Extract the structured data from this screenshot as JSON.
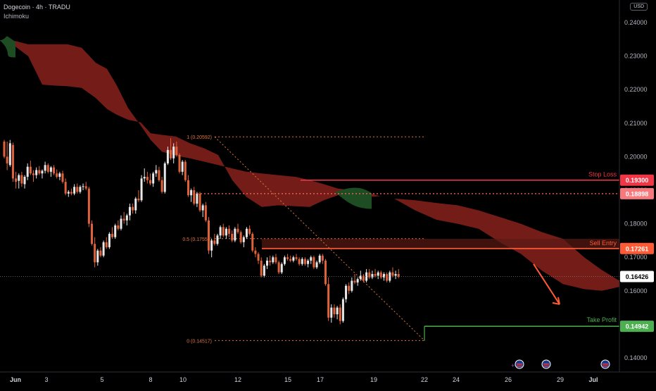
{
  "header": {
    "symbol": "Dogecoin · 4h · TRADU",
    "indicator": "Ichimoku",
    "currency": "USD"
  },
  "colors": {
    "up": "#e8e8e8",
    "down": "#e0623a",
    "bearish_cloud": "#7a1f19",
    "bullish_cloud": "#1e4d24",
    "stop_loss": "#f23645",
    "sell_entry": "#ff5a36",
    "take_profit": "#4caf50",
    "fib": "#e0763a",
    "arrow": "#ff5a36"
  },
  "chart_data": {
    "type": "candlestick",
    "y_axis": {
      "ticks": [
        "0.24000",
        "0.23000",
        "0.22000",
        "0.21000",
        "0.20000",
        "0.19000",
        "0.18000",
        "0.17000",
        "0.16000",
        "0.15000",
        "0.14000"
      ],
      "ylim": [
        0.1375,
        0.2435
      ]
    },
    "x_axis": {
      "labels": [
        "Jun",
        "3",
        "5",
        "8",
        "10",
        "12",
        "15",
        "17",
        "19",
        "22",
        "24",
        "26",
        "29",
        "Jul"
      ]
    },
    "candles": [
      [
        0.2045,
        0.205,
        0.1995,
        0.2
      ],
      [
        0.2,
        0.2045,
        0.196,
        0.198
      ],
      [
        0.1975,
        0.205,
        0.197,
        0.204
      ],
      [
        0.2035,
        0.2042,
        0.1925,
        0.1935
      ],
      [
        0.1935,
        0.1955,
        0.1905,
        0.1925
      ],
      [
        0.1928,
        0.195,
        0.1905,
        0.1945
      ],
      [
        0.1945,
        0.1955,
        0.191,
        0.192
      ],
      [
        0.1918,
        0.1945,
        0.1905,
        0.194
      ],
      [
        0.194,
        0.198,
        0.193,
        0.197
      ],
      [
        0.197,
        0.1988,
        0.1945,
        0.195
      ],
      [
        0.195,
        0.196,
        0.1925,
        0.1945
      ],
      [
        0.1945,
        0.1968,
        0.1935,
        0.196
      ],
      [
        0.196,
        0.1972,
        0.1945,
        0.195
      ],
      [
        0.195,
        0.1962,
        0.1935,
        0.1958
      ],
      [
        0.1958,
        0.1985,
        0.195,
        0.1975
      ],
      [
        0.1975,
        0.198,
        0.195,
        0.1955
      ],
      [
        0.1955,
        0.1972,
        0.194,
        0.1968
      ],
      [
        0.1968,
        0.1975,
        0.1945,
        0.195
      ],
      [
        0.195,
        0.1962,
        0.1935,
        0.194
      ],
      [
        0.194,
        0.1955,
        0.193,
        0.195
      ],
      [
        0.195,
        0.1958,
        0.192,
        0.1925
      ],
      [
        0.1925,
        0.1935,
        0.1885,
        0.189
      ],
      [
        0.189,
        0.19,
        0.188,
        0.1895
      ],
      [
        0.1895,
        0.1905,
        0.1885,
        0.189
      ],
      [
        0.189,
        0.1918,
        0.1885,
        0.191
      ],
      [
        0.191,
        0.192,
        0.189,
        0.1895
      ],
      [
        0.1895,
        0.1915,
        0.189,
        0.191
      ],
      [
        0.191,
        0.192,
        0.19,
        0.1912
      ],
      [
        0.1912,
        0.1925,
        0.19,
        0.1905
      ],
      [
        0.1905,
        0.191,
        0.179,
        0.18
      ],
      [
        0.18,
        0.181,
        0.1735,
        0.174
      ],
      [
        0.174,
        0.176,
        0.167,
        0.1685
      ],
      [
        0.1685,
        0.1725,
        0.1675,
        0.172
      ],
      [
        0.172,
        0.173,
        0.17,
        0.1705
      ],
      [
        0.1705,
        0.175,
        0.17,
        0.1745
      ],
      [
        0.1745,
        0.176,
        0.1725,
        0.173
      ],
      [
        0.173,
        0.1775,
        0.1725,
        0.177
      ],
      [
        0.177,
        0.179,
        0.1755,
        0.176
      ],
      [
        0.176,
        0.18,
        0.1755,
        0.1795
      ],
      [
        0.1795,
        0.181,
        0.178,
        0.1785
      ],
      [
        0.1785,
        0.1825,
        0.178,
        0.1815
      ],
      [
        0.1815,
        0.1835,
        0.18,
        0.181
      ],
      [
        0.181,
        0.183,
        0.1795,
        0.1825
      ],
      [
        0.1825,
        0.186,
        0.181,
        0.185
      ],
      [
        0.185,
        0.186,
        0.183,
        0.184
      ],
      [
        0.184,
        0.188,
        0.183,
        0.1875
      ],
      [
        0.1875,
        0.19,
        0.1865,
        0.187
      ],
      [
        0.187,
        0.1945,
        0.1865,
        0.1935
      ],
      [
        0.1935,
        0.1965,
        0.1925,
        0.194
      ],
      [
        0.194,
        0.1955,
        0.192,
        0.193
      ],
      [
        0.193,
        0.195,
        0.1915,
        0.192
      ],
      [
        0.192,
        0.1955,
        0.191,
        0.195
      ],
      [
        0.195,
        0.1975,
        0.194,
        0.196
      ],
      [
        0.196,
        0.197,
        0.1925,
        0.193
      ],
      [
        0.193,
        0.194,
        0.189,
        0.1895
      ],
      [
        0.1895,
        0.1985,
        0.189,
        0.198
      ],
      [
        0.198,
        0.203,
        0.1975,
        0.202
      ],
      [
        0.202,
        0.2055,
        0.199,
        0.1995
      ],
      [
        0.1995,
        0.204,
        0.198,
        0.203
      ],
      [
        0.203,
        0.2045,
        0.2,
        0.2005
      ],
      [
        0.2005,
        0.201,
        0.195,
        0.1955
      ],
      [
        0.1955,
        0.199,
        0.1945,
        0.1985
      ],
      [
        0.1985,
        0.199,
        0.1925,
        0.193
      ],
      [
        0.193,
        0.1945,
        0.188,
        0.1885
      ],
      [
        0.1885,
        0.1905,
        0.1865,
        0.19
      ],
      [
        0.19,
        0.191,
        0.1855,
        0.186
      ],
      [
        0.186,
        0.1895,
        0.185,
        0.189
      ],
      [
        0.189,
        0.1895,
        0.1835,
        0.184
      ],
      [
        0.184,
        0.186,
        0.182,
        0.1855
      ],
      [
        0.1855,
        0.1865,
        0.1805,
        0.181
      ],
      [
        0.181,
        0.182,
        0.171,
        0.172
      ],
      [
        0.172,
        0.1755,
        0.17,
        0.175
      ],
      [
        0.175,
        0.177,
        0.1735,
        0.174
      ],
      [
        0.174,
        0.177,
        0.1735,
        0.1765
      ],
      [
        0.1765,
        0.1795,
        0.1755,
        0.179
      ],
      [
        0.179,
        0.18,
        0.176,
        0.1765
      ],
      [
        0.1765,
        0.179,
        0.1755,
        0.1785
      ],
      [
        0.1785,
        0.1795,
        0.176,
        0.177
      ],
      [
        0.177,
        0.178,
        0.1745,
        0.175
      ],
      [
        0.175,
        0.179,
        0.1745,
        0.1785
      ],
      [
        0.1785,
        0.18,
        0.177,
        0.1775
      ],
      [
        0.1775,
        0.178,
        0.174,
        0.1745
      ],
      [
        0.1745,
        0.1765,
        0.173,
        0.176
      ],
      [
        0.176,
        0.179,
        0.1755,
        0.1785
      ],
      [
        0.1785,
        0.1795,
        0.1765,
        0.177
      ],
      [
        0.177,
        0.1775,
        0.1715,
        0.172
      ],
      [
        0.172,
        0.173,
        0.17,
        0.171
      ],
      [
        0.171,
        0.1715,
        0.168,
        0.169
      ],
      [
        0.169,
        0.17,
        0.164,
        0.1645
      ],
      [
        0.1645,
        0.168,
        0.164,
        0.1675
      ],
      [
        0.1675,
        0.17,
        0.1665,
        0.169
      ],
      [
        0.169,
        0.1705,
        0.1675,
        0.1685
      ],
      [
        0.1685,
        0.1705,
        0.168,
        0.17
      ],
      [
        0.17,
        0.171,
        0.168,
        0.1685
      ],
      [
        0.1685,
        0.169,
        0.165,
        0.1655
      ],
      [
        0.1655,
        0.1685,
        0.165,
        0.168
      ],
      [
        0.168,
        0.1705,
        0.1675,
        0.17
      ],
      [
        0.17,
        0.171,
        0.169,
        0.1695
      ],
      [
        0.1695,
        0.1705,
        0.1685,
        0.169
      ],
      [
        0.169,
        0.1705,
        0.1685,
        0.17
      ],
      [
        0.17,
        0.171,
        0.169,
        0.1695
      ],
      [
        0.1695,
        0.17,
        0.1675,
        0.168
      ],
      [
        0.168,
        0.17,
        0.1675,
        0.1695
      ],
      [
        0.1695,
        0.17,
        0.1675,
        0.168
      ],
      [
        0.168,
        0.1695,
        0.167,
        0.169
      ],
      [
        0.169,
        0.1705,
        0.168,
        0.17
      ],
      [
        0.17,
        0.1705,
        0.1665,
        0.167
      ],
      [
        0.167,
        0.169,
        0.1665,
        0.1685
      ],
      [
        0.1685,
        0.171,
        0.168,
        0.1705
      ],
      [
        0.1705,
        0.171,
        0.168,
        0.169
      ],
      [
        0.169,
        0.1695,
        0.1615,
        0.162
      ],
      [
        0.162,
        0.164,
        0.151,
        0.152
      ],
      [
        0.152,
        0.156,
        0.1505,
        0.155
      ],
      [
        0.155,
        0.156,
        0.152,
        0.153
      ],
      [
        0.153,
        0.1555,
        0.1515,
        0.155
      ],
      [
        0.155,
        0.156,
        0.15,
        0.151
      ],
      [
        0.151,
        0.158,
        0.1505,
        0.1575
      ],
      [
        0.1575,
        0.162,
        0.1565,
        0.1615
      ],
      [
        0.1615,
        0.1625,
        0.159,
        0.16
      ],
      [
        0.16,
        0.164,
        0.1595,
        0.163
      ],
      [
        0.163,
        0.165,
        0.162,
        0.1625
      ],
      [
        0.1625,
        0.164,
        0.1615,
        0.1635
      ],
      [
        0.1635,
        0.166,
        0.163,
        0.1645
      ],
      [
        0.1645,
        0.165,
        0.1625,
        0.163
      ],
      [
        0.163,
        0.1665,
        0.1625,
        0.1655
      ],
      [
        0.1655,
        0.1665,
        0.1635,
        0.164
      ],
      [
        0.164,
        0.166,
        0.1635,
        0.165
      ],
      [
        0.165,
        0.1665,
        0.164,
        0.1645
      ],
      [
        0.1645,
        0.166,
        0.1635,
        0.1655
      ],
      [
        0.1655,
        0.166,
        0.1635,
        0.164
      ],
      [
        0.164,
        0.1655,
        0.163,
        0.165
      ],
      [
        0.165,
        0.1655,
        0.1625,
        0.163
      ],
      [
        0.163,
        0.166,
        0.1625,
        0.1655
      ],
      [
        0.1655,
        0.167,
        0.164,
        0.1645
      ],
      [
        0.1645,
        0.166,
        0.1635,
        0.165
      ],
      [
        0.165,
        0.1665,
        0.1638,
        0.1642
      ]
    ],
    "ichimoku_cloud": {
      "upper": [
        [
          0,
          0.2345
        ],
        [
          22,
          0.2345
        ],
        [
          40,
          0.2335
        ],
        [
          60,
          0.2335
        ],
        [
          78,
          0.2335
        ],
        [
          96,
          0.2335
        ],
        [
          116,
          0.2325
        ],
        [
          136,
          0.228
        ],
        [
          152,
          0.2262
        ],
        [
          166,
          0.2212
        ],
        [
          182,
          0.2145
        ],
        [
          200,
          0.2093
        ],
        [
          214,
          0.205
        ],
        [
          230,
          0.2015
        ],
        [
          250,
          0.2003
        ],
        [
          270,
          0.1995
        ],
        [
          290,
          0.1985
        ],
        [
          310,
          0.1975
        ],
        [
          330,
          0.1965
        ],
        [
          350,
          0.1955
        ],
        [
          372,
          0.195
        ],
        [
          395,
          0.1945
        ],
        [
          420,
          0.194
        ],
        [
          440,
          0.193
        ],
        [
          460,
          0.1918
        ],
        [
          480,
          0.1905
        ],
        [
          500,
          0.19
        ],
        [
          520,
          0.1895
        ],
        [
          540,
          0.1882
        ],
        [
          560,
          0.1875
        ],
        [
          590,
          0.187
        ],
        [
          620,
          0.1862
        ],
        [
          650,
          0.1855
        ],
        [
          680,
          0.184
        ],
        [
          710,
          0.182
        ],
        [
          740,
          0.18
        ],
        [
          770,
          0.1775
        ],
        [
          800,
          0.1755
        ],
        [
          830,
          0.17
        ],
        [
          855,
          0.1662
        ],
        [
          880,
          0.163
        ]
      ],
      "lower": [
        [
          0,
          0.2348
        ],
        [
          22,
          0.2328
        ],
        [
          40,
          0.23
        ],
        [
          60,
          0.2215
        ],
        [
          78,
          0.2212
        ],
        [
          96,
          0.221
        ],
        [
          116,
          0.2205
        ],
        [
          136,
          0.2175
        ],
        [
          152,
          0.2142
        ],
        [
          166,
          0.2125
        ],
        [
          182,
          0.211
        ],
        [
          200,
          0.2102
        ],
        [
          214,
          0.207
        ],
        [
          230,
          0.2065
        ],
        [
          250,
          0.206
        ],
        [
          270,
          0.204
        ],
        [
          290,
          0.2025
        ],
        [
          310,
          0.2005
        ],
        [
          330,
          0.193
        ],
        [
          350,
          0.188
        ],
        [
          372,
          0.185
        ],
        [
          395,
          0.1855
        ],
        [
          420,
          0.1852
        ],
        [
          440,
          0.185
        ],
        [
          460,
          0.187
        ],
        [
          480,
          0.1885
        ],
        [
          500,
          0.1885
        ],
        [
          520,
          0.188
        ],
        [
          540,
          0.1882
        ],
        [
          560,
          0.1875
        ],
        [
          590,
          0.184
        ],
        [
          620,
          0.1812
        ],
        [
          650,
          0.18
        ],
        [
          680,
          0.1785
        ],
        [
          710,
          0.1745
        ],
        [
          740,
          0.171
        ],
        [
          770,
          0.166
        ],
        [
          800,
          0.162
        ],
        [
          830,
          0.1605
        ],
        [
          855,
          0.16
        ],
        [
          880,
          0.1612
        ]
      ],
      "bullish_segments": [
        [
          0,
          22
        ],
        [
          476,
          528
        ]
      ]
    },
    "levels": {
      "stop_loss": {
        "label": "Stop Loss",
        "value": 0.193,
        "price": "0.19300"
      },
      "dotted": {
        "value": 0.18898,
        "price": "0.18898"
      },
      "sell_entry": {
        "label": "Sell Entry",
        "value": 0.17261,
        "price": "0.17261"
      },
      "sell_zone_top": 0.1755,
      "current": {
        "value": 0.16426,
        "price": "0.16426"
      },
      "take_profit": {
        "label": "Take Profit",
        "value": 0.14942,
        "price": "0.14942"
      }
    },
    "fibonacci": [
      {
        "label": "1 (0.20592)",
        "value": 0.20592
      },
      {
        "label": "0.5 (0.17555)",
        "value": 0.17555
      },
      {
        "label": "0 (0.14517)",
        "value": 0.14517
      }
    ],
    "projection_arrow": {
      "from": 0.168,
      "to": 0.156
    }
  }
}
